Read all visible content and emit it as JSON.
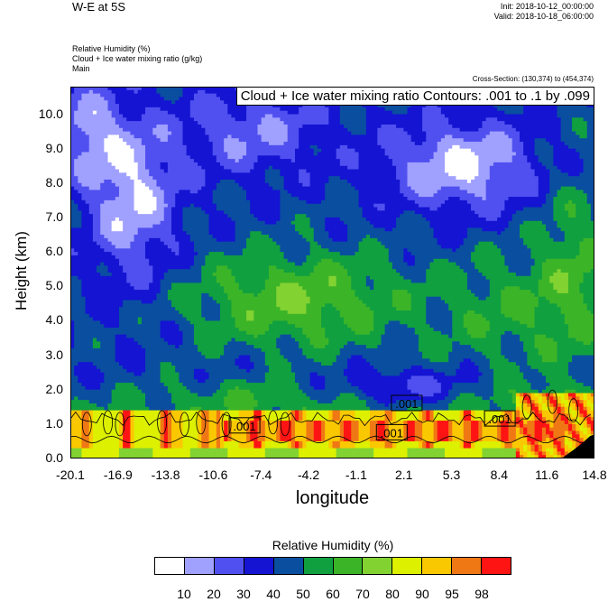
{
  "header": {
    "title": "W-E at 5S",
    "init": "Init: 2018-10-12_00:00:00",
    "valid": "Valid: 2018-10-18_06:00:00",
    "field1": "Relative Humidity   (%)",
    "field2": "Cloud + Ice water mixing ratio   (g/kg)",
    "field3": "Main",
    "cross_section": "Cross-Section: (130,374) to (454,374)"
  },
  "colors": {
    "levels": [
      "#ffffff",
      "#a0a0ff",
      "#5050f0",
      "#1414d2",
      "#0a4ea0",
      "#10a040",
      "#3cb428",
      "#82d232",
      "#dcf000",
      "#fac800",
      "#f07814",
      "#ff1414"
    ]
  },
  "chart_data": {
    "type": "heatmap",
    "title": "Cloud + Ice water mixing ratio Contours: .001 to .1 by .099",
    "xlabel": "longitude",
    "ylabel": "Height (km)",
    "x_ticks": [
      "-20.1",
      "-16.9",
      "-13.8",
      "-10.6",
      "-7.4",
      "-4.2",
      "-1.1",
      "2.1",
      "5.3",
      "8.4",
      "11.6",
      "14.8"
    ],
    "y_ticks": [
      "0.0",
      "1.0",
      "2.0",
      "3.0",
      "4.0",
      "5.0",
      "6.0",
      "7.0",
      "8.0",
      "9.0",
      "10.0"
    ],
    "xlim": [
      -20.1,
      14.8
    ],
    "ylim": [
      0,
      10.8
    ],
    "colorbar": {
      "title": "Relative Humidity  (%)",
      "labels": [
        "10",
        "20",
        "30",
        "40",
        "50",
        "60",
        "70",
        "80",
        "90",
        "95",
        "98"
      ]
    },
    "contour_labels": [
      {
        "text": ".001",
        "x": -8.5,
        "y": 0.95
      },
      {
        "text": ".001",
        "x": 2.3,
        "y": 1.6
      },
      {
        "text": ".001",
        "x": 1.3,
        "y": 0.75
      },
      {
        "text": ".001",
        "x": 8.5,
        "y": 1.15
      }
    ]
  }
}
